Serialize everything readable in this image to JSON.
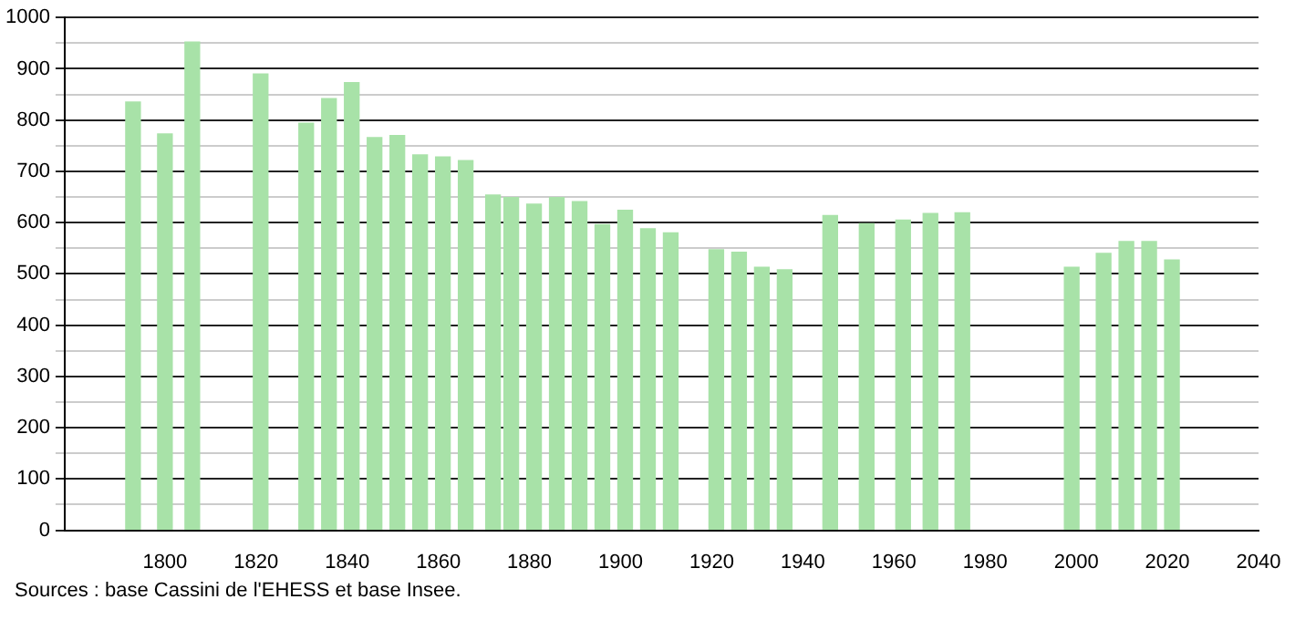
{
  "chart_data": {
    "type": "bar",
    "x": [
      1793,
      1800,
      1806,
      1821,
      1831,
      1836,
      1841,
      1846,
      1851,
      1856,
      1861,
      1866,
      1872,
      1876,
      1881,
      1886,
      1891,
      1896,
      1901,
      1906,
      1911,
      1921,
      1926,
      1931,
      1936,
      1946,
      1954,
      1962,
      1968,
      1975,
      1999,
      2006,
      2011,
      2016,
      2021
    ],
    "values": [
      835,
      773,
      952,
      890,
      794,
      842,
      873,
      766,
      770,
      732,
      728,
      721,
      654,
      649,
      636,
      649,
      641,
      596,
      624,
      588,
      580,
      547,
      542,
      513,
      508,
      614,
      598,
      605,
      618,
      619,
      513,
      540,
      563,
      563,
      527
    ],
    "color": "#a8e2a8",
    "xlim": [
      1778,
      2040
    ],
    "xticks": [
      1800,
      1820,
      1840,
      1860,
      1880,
      1900,
      1920,
      1940,
      1960,
      1980,
      2000,
      2020,
      2040
    ],
    "ylim": [
      0,
      1000
    ],
    "yticks": [
      0,
      {
        "value": 50,
        "label": null
      },
      100,
      {
        "value": 150,
        "label": null
      },
      200,
      {
        "value": 250,
        "label": null
      },
      300,
      {
        "value": 350,
        "label": null
      },
      400,
      {
        "value": 450,
        "label": null
      },
      500,
      {
        "value": 550,
        "label": null
      },
      600,
      {
        "value": 650,
        "label": null
      },
      700,
      {
        "value": 750,
        "label": null
      },
      800,
      {
        "value": 850,
        "label": null
      },
      900,
      {
        "value": 950,
        "label": null
      },
      1000
    ],
    "grid": "y",
    "legend": false,
    "annotations": [
      "Sources : base Cassini de l'EHESS et base Insee."
    ]
  }
}
